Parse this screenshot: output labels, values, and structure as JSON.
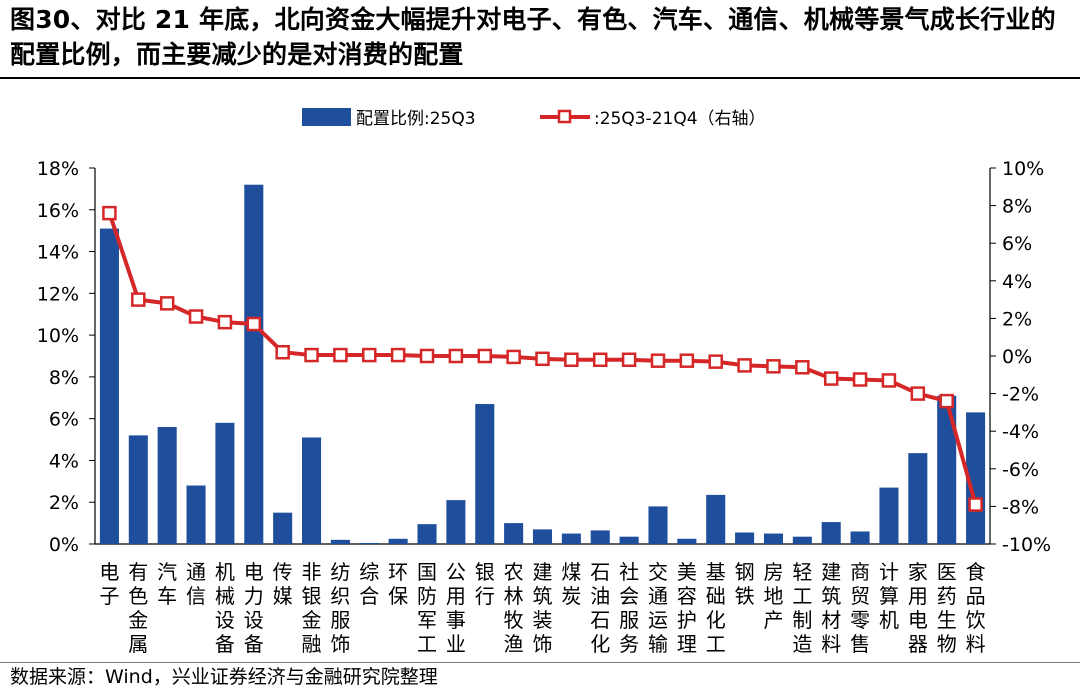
{
  "figure": {
    "title": "图30、对比 21 年底，北向资金大幅提升对电子、有色、汽车、通信、机械等景气成长行业的配置比例，而主要减少的是对消费的配置",
    "source": "数据来源：Wind，兴业证券经济与金融研究院整理"
  },
  "chart_data": {
    "type": "bar",
    "categories": [
      "电子",
      "有色金属",
      "汽车",
      "通信",
      "机械设备",
      "电力设备",
      "传媒",
      "非银金融",
      "纺织服饰",
      "综合",
      "环保",
      "国防军工",
      "公用事业",
      "银行",
      "农林牧渔",
      "建筑装饰",
      "煤炭",
      "石油石化",
      "社会服务",
      "交通运输",
      "美容护理",
      "基础化工",
      "钢铁",
      "房地产",
      "轻工制造",
      "建筑材料",
      "商贸零售",
      "计算机",
      "家用电器",
      "医药生物",
      "食品饮料"
    ],
    "series": [
      {
        "name": "配置比例:25Q3",
        "type": "bar",
        "axis": "left",
        "color": "#1f4e9c",
        "values": [
          15.1,
          5.2,
          5.6,
          2.8,
          5.8,
          17.2,
          1.5,
          5.1,
          0.2,
          0.05,
          0.25,
          0.95,
          2.1,
          6.7,
          1.0,
          0.7,
          0.5,
          0.65,
          0.35,
          1.8,
          0.25,
          2.35,
          0.55,
          0.5,
          0.35,
          1.05,
          0.6,
          2.7,
          4.35,
          7.1,
          6.3
        ]
      },
      {
        "name": ":25Q3-21Q4（右轴）",
        "type": "line",
        "axis": "right",
        "color": "#d62728",
        "marker": "square-open",
        "values": [
          7.6,
          3.0,
          2.8,
          2.1,
          1.8,
          1.7,
          0.2,
          0.05,
          0.05,
          0.05,
          0.05,
          0.0,
          0.0,
          0.0,
          -0.05,
          -0.15,
          -0.2,
          -0.2,
          -0.2,
          -0.25,
          -0.25,
          -0.3,
          -0.5,
          -0.55,
          -0.6,
          -1.2,
          -1.25,
          -1.3,
          -2.0,
          -2.4,
          -7.9
        ]
      }
    ],
    "left_axis": {
      "range": [
        0,
        18
      ],
      "ticks": [
        "0%",
        "2%",
        "4%",
        "6%",
        "8%",
        "10%",
        "12%",
        "14%",
        "16%",
        "18%"
      ],
      "tick_values": [
        0,
        2,
        4,
        6,
        8,
        10,
        12,
        14,
        16,
        18
      ]
    },
    "right_axis": {
      "range": [
        -10,
        10
      ],
      "ticks": [
        "-10%",
        "-8%",
        "-6%",
        "-4%",
        "-2%",
        "0%",
        "2%",
        "4%",
        "6%",
        "8%",
        "10%"
      ],
      "tick_values": [
        -10,
        -8,
        -6,
        -4,
        -2,
        0,
        2,
        4,
        6,
        8,
        10
      ]
    },
    "grid": false,
    "legend_position": "top-center"
  }
}
